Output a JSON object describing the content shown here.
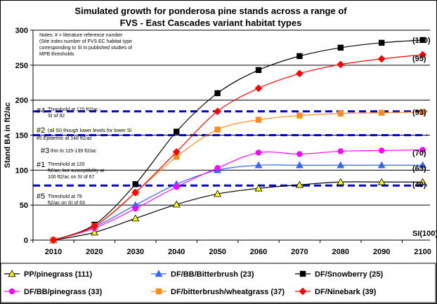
{
  "chart_data": {
    "type": "line",
    "title": [
      "Simulated growth for ponderosa pine stands across a range of",
      "FVS - East Cascades variant habitat types"
    ],
    "ylabel": "Stand BA in ft2/ac",
    "xlabel": "",
    "x": [
      2010,
      2020,
      2030,
      2040,
      2050,
      2060,
      2070,
      2080,
      2090,
      2100
    ],
    "ylim": [
      0,
      300
    ],
    "yticks": [
      0,
      50,
      100,
      150,
      200,
      250,
      300
    ],
    "grid": "horizontal",
    "legend_position": "bottom",
    "series": [
      {
        "name": "PP/pinegrass (111)",
        "color": "#000000",
        "marker": "triangle",
        "marker_fill": "#ffff00",
        "line_color": "#000000",
        "values": [
          0,
          11,
          31,
          51,
          66,
          74,
          79,
          83,
          83,
          83
        ]
      },
      {
        "name": "DF/BB/Bitterbrush (23)",
        "color": "#3366ff",
        "marker": "triangle",
        "marker_fill": "#3366ff",
        "line_color": "#3366ff",
        "values": [
          0,
          19,
          50,
          80,
          100,
          107,
          107,
          107,
          107,
          107
        ]
      },
      {
        "name": "DF/Snowberry (25)",
        "color": "#000000",
        "marker": "square",
        "marker_fill": "#000000",
        "line_color": "#000000",
        "values": [
          0,
          22,
          80,
          155,
          210,
          243,
          263,
          275,
          282,
          286
        ]
      },
      {
        "name": "DF/BB/pinegrass (33)",
        "color": "#ff00ff",
        "marker": "circle",
        "marker_fill": "#ff00ff",
        "line_color": "#ff00ff",
        "values": [
          0,
          17,
          45,
          76,
          103,
          125,
          123,
          127,
          128,
          129
        ]
      },
      {
        "name": "DF/bitterbrush/wheatgrass (37)",
        "color": "#ff8c1a",
        "marker": "square",
        "marker_fill": "#ff8c1a",
        "line_color": "#ff8c1a",
        "values": [
          0,
          20,
          68,
          119,
          158,
          172,
          178,
          181,
          182,
          183
        ]
      },
      {
        "name": "DF/Ninebark (39)",
        "color": "#ff0000",
        "marker": "diamond",
        "marker_fill": "#ff0000",
        "line_color": "#ff0000",
        "values": [
          0,
          20,
          68,
          126,
          184,
          217,
          238,
          251,
          259,
          265
        ]
      }
    ],
    "threshold_lines": [
      {
        "y": 184,
        "color": "#0000dd"
      },
      {
        "y": 150,
        "color": "#0000dd"
      },
      {
        "y": 78,
        "color": "#0000dd"
      }
    ],
    "end_labels": [
      {
        "text": "(120)",
        "y": 286
      },
      {
        "text": "(95)",
        "y": 260
      },
      {
        "text": "(93)",
        "y": 183
      },
      {
        "text": "(70)",
        "y": 125
      },
      {
        "text": "(63)",
        "y": 103
      },
      {
        "text": "(49)",
        "y": 80
      },
      {
        "text": "SI(100)",
        "y": 10
      }
    ],
    "notes": {
      "lines": [
        "Notes: # = literature reference number",
        "(Site index number of FVS  EC habitat type",
        "corresponding to SI in published studies of",
        "MPB thresholds"
      ]
    },
    "annotations": [
      {
        "big": "#4",
        "small": [
          "Threshold at 170 ft2/ac -",
          "SI of 92"
        ],
        "y": 184
      },
      {
        "big": "#2",
        "small": [
          "(all SI) though lower levels for lower SI"
        ],
        "y": 155
      },
      {
        "big": "",
        "small": [
          "#5  Epidemic at 148 ft2/ac"
        ],
        "y": 145
      },
      {
        "big": "#3",
        "small": [
          "thin to 115-139 ft2/ac"
        ],
        "y": 128
      },
      {
        "big": "#1",
        "small": [
          "Threshold at 120",
          "ft2/ac, but susceptibility at",
          "100 ft2/ac on SI of 67"
        ],
        "y": 108
      },
      {
        "big": "#5",
        "small": [
          "Threshold at 78",
          "ft2/ac on SI of 63"
        ],
        "y": 64
      }
    ]
  }
}
